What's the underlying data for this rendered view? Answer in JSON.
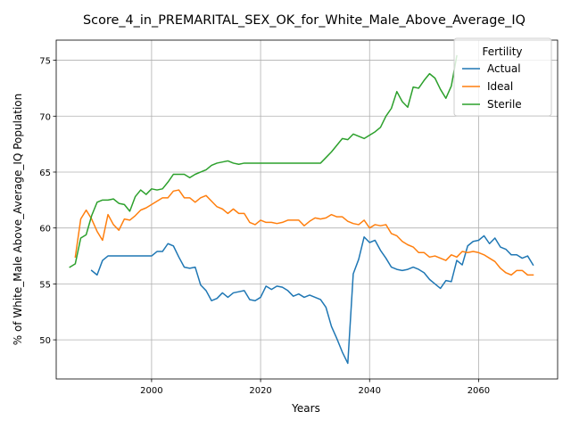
{
  "chart_data": {
    "type": "line",
    "title": "Score_4_in_PREMARITAL_SEX_OK_for_White_Male_Above_Average_IQ",
    "xlabel": "Years",
    "ylabel": "% of White_Male Above_Average_IQ Population",
    "xlim": [
      1982.5,
      2074.5
    ],
    "ylim": [
      46.5,
      76.8
    ],
    "xticks": [
      2000,
      2020,
      2040,
      2060
    ],
    "yticks": [
      50,
      55,
      60,
      65,
      70,
      75
    ],
    "grid": true,
    "legend": {
      "title": "Fertility",
      "placement": "top-right"
    },
    "series": [
      {
        "name": "Actual",
        "color": "#1f77b4",
        "x": [
          1989,
          1990,
          1991,
          1992,
          1993,
          1994,
          1995,
          1996,
          1997,
          1998,
          1999,
          2000,
          2001,
          2002,
          2003,
          2004,
          2005,
          2006,
          2007,
          2008,
          2009,
          2010,
          2011,
          2012,
          2013,
          2014,
          2015,
          2016,
          2017,
          2018,
          2019,
          2020,
          2021,
          2022,
          2023,
          2024,
          2025,
          2026,
          2027,
          2028,
          2029,
          2030,
          2031,
          2032,
          2033,
          2034,
          2035,
          2036,
          2037,
          2038,
          2039,
          2040,
          2041,
          2042,
          2043,
          2044,
          2045,
          2046,
          2047,
          2048,
          2049,
          2050,
          2051,
          2052,
          2053,
          2054,
          2055,
          2056,
          2057,
          2058,
          2059,
          2060,
          2061,
          2062,
          2063,
          2064,
          2065,
          2066,
          2067,
          2068,
          2069,
          2070
        ],
        "y": [
          56.2,
          55.8,
          57.1,
          57.5,
          57.5,
          57.5,
          57.5,
          57.5,
          57.5,
          57.5,
          57.5,
          57.5,
          57.9,
          57.9,
          58.6,
          58.4,
          57.4,
          56.5,
          56.4,
          56.5,
          54.9,
          54.4,
          53.5,
          53.7,
          54.2,
          53.8,
          54.2,
          54.3,
          54.4,
          53.6,
          53.5,
          53.8,
          54.8,
          54.5,
          54.8,
          54.7,
          54.4,
          53.9,
          54.1,
          53.8,
          54.0,
          53.8,
          53.6,
          52.9,
          51.2,
          50.1,
          48.9,
          47.9,
          55.9,
          57.2,
          59.2,
          58.7,
          58.9,
          58.0,
          57.3,
          56.5,
          56.3,
          56.2,
          56.3,
          56.5,
          56.3,
          56.0,
          55.4,
          55.0,
          54.6,
          55.3,
          55.2,
          57.1,
          56.7,
          58.4,
          58.8,
          58.9,
          59.3,
          58.6,
          59.1,
          58.3,
          58.1,
          57.6,
          57.6,
          57.3,
          57.5,
          56.7
        ]
      },
      {
        "name": "Ideal",
        "color": "#ff7f0e",
        "x": [
          1986,
          1987,
          1988,
          1989,
          1990,
          1991,
          1992,
          1993,
          1994,
          1995,
          1996,
          1997,
          1998,
          1999,
          2000,
          2001,
          2002,
          2003,
          2004,
          2005,
          2006,
          2007,
          2008,
          2009,
          2010,
          2011,
          2012,
          2013,
          2014,
          2015,
          2016,
          2017,
          2018,
          2019,
          2020,
          2021,
          2022,
          2023,
          2024,
          2025,
          2026,
          2027,
          2028,
          2029,
          2030,
          2031,
          2032,
          2033,
          2034,
          2035,
          2036,
          2037,
          2038,
          2039,
          2040,
          2041,
          2042,
          2043,
          2044,
          2045,
          2046,
          2047,
          2048,
          2049,
          2050,
          2051,
          2052,
          2053,
          2054,
          2055,
          2056,
          2057,
          2058,
          2059,
          2060,
          2061,
          2062,
          2063,
          2064,
          2065,
          2066,
          2067,
          2068,
          2069,
          2070
        ],
        "y": [
          57.4,
          60.8,
          61.6,
          60.8,
          59.7,
          58.9,
          61.2,
          60.3,
          59.8,
          60.8,
          60.7,
          61.1,
          61.6,
          61.8,
          62.1,
          62.4,
          62.7,
          62.7,
          63.3,
          63.4,
          62.7,
          62.7,
          62.3,
          62.7,
          62.9,
          62.4,
          61.9,
          61.7,
          61.3,
          61.7,
          61.3,
          61.3,
          60.5,
          60.3,
          60.7,
          60.5,
          60.5,
          60.4,
          60.5,
          60.7,
          60.7,
          60.7,
          60.2,
          60.6,
          60.9,
          60.8,
          60.9,
          61.2,
          61.0,
          61.0,
          60.6,
          60.4,
          60.3,
          60.7,
          60.0,
          60.3,
          60.2,
          60.3,
          59.5,
          59.3,
          58.8,
          58.5,
          58.3,
          57.8,
          57.8,
          57.4,
          57.5,
          57.3,
          57.1,
          57.6,
          57.4,
          57.9,
          57.8,
          57.9,
          57.8,
          57.6,
          57.3,
          57.0,
          56.4,
          56.0,
          55.8,
          56.2,
          56.2,
          55.8,
          55.8
        ]
      },
      {
        "name": "Sterile",
        "color": "#2ca02c",
        "x": [
          1985,
          1986,
          1987,
          1988,
          1989,
          1990,
          1991,
          1992,
          1993,
          1994,
          1995,
          1996,
          1997,
          1998,
          1999,
          2000,
          2001,
          2002,
          2003,
          2004,
          2005,
          2006,
          2007,
          2008,
          2009,
          2010,
          2011,
          2012,
          2013,
          2014,
          2015,
          2016,
          2017,
          2018,
          2019,
          2020,
          2021,
          2022,
          2023,
          2024,
          2025,
          2026,
          2027,
          2028,
          2029,
          2030,
          2031,
          2032,
          2033,
          2034,
          2035,
          2036,
          2037,
          2038,
          2039,
          2040,
          2041,
          2042,
          2043,
          2044,
          2045,
          2046,
          2047,
          2048,
          2049,
          2050,
          2051,
          2052,
          2053,
          2054,
          2055,
          2056
        ],
        "y": [
          56.5,
          56.8,
          59.1,
          59.4,
          61.1,
          62.3,
          62.5,
          62.5,
          62.6,
          62.2,
          62.1,
          61.5,
          62.8,
          63.4,
          63.0,
          63.5,
          63.4,
          63.5,
          64.1,
          64.8,
          64.8,
          64.8,
          64.5,
          64.8,
          65.0,
          65.2,
          65.6,
          65.8,
          65.9,
          66.0,
          65.8,
          65.7,
          65.8,
          65.8,
          65.8,
          65.8,
          65.8,
          65.8,
          65.8,
          65.8,
          65.8,
          65.8,
          65.8,
          65.8,
          65.8,
          65.8,
          65.8,
          66.3,
          66.8,
          67.4,
          68.0,
          67.9,
          68.4,
          68.2,
          68.0,
          68.3,
          68.6,
          69.0,
          70.0,
          70.7,
          72.2,
          71.3,
          70.8,
          72.6,
          72.5,
          73.2,
          73.8,
          73.4,
          72.4,
          71.6,
          72.7,
          75.4
        ]
      }
    ]
  }
}
